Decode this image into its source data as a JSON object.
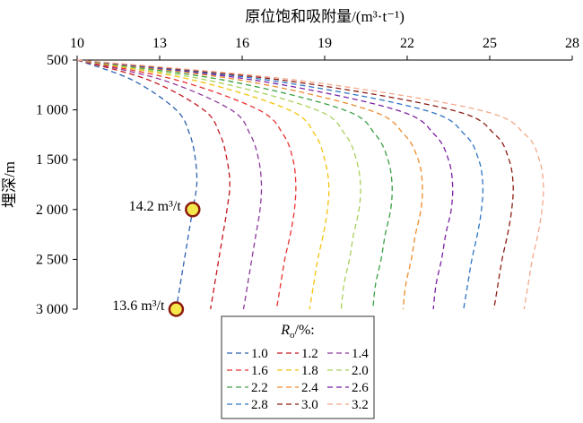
{
  "chart_data": {
    "type": "line",
    "title": "",
    "xlabel": "原位饱和吸附量/(m³·t⁻¹)",
    "ylabel": "埋深/m",
    "x_axis_position": "top",
    "y_axis_inverted": true,
    "xlim": [
      10,
      28
    ],
    "ylim": [
      500,
      3000
    ],
    "xticks": [
      10,
      13,
      16,
      19,
      22,
      25,
      28
    ],
    "xtick_labels": [
      "10",
      "13",
      "16",
      "19",
      "22",
      "25",
      "28"
    ],
    "yticks": [
      500,
      1000,
      1500,
      2000,
      2500,
      3000
    ],
    "ytick_labels": [
      "500",
      "1 000",
      "1 500",
      "2 000",
      "2 500",
      "3 000"
    ],
    "grid": false,
    "line_style": "dashed",
    "legend": {
      "title": "R",
      "title_subscript": "o",
      "title_suffix": "/%:",
      "placement": "bottom-center",
      "columns": 3
    },
    "series": [
      {
        "name": "1.0",
        "color": "#2e62b0",
        "points": [
          [
            10,
            500
          ],
          [
            12.0,
            700
          ],
          [
            13.6,
            1000
          ],
          [
            14.1,
            1250
          ],
          [
            14.3,
            1500
          ],
          [
            14.35,
            1750
          ],
          [
            14.2,
            2000
          ],
          [
            14.05,
            2250
          ],
          [
            13.9,
            2500
          ],
          [
            13.75,
            2750
          ],
          [
            13.6,
            3000
          ]
        ]
      },
      {
        "name": "1.2",
        "color": "#c4161c",
        "points": [
          [
            10,
            500
          ],
          [
            12.6,
            700
          ],
          [
            14.6,
            1000
          ],
          [
            15.2,
            1250
          ],
          [
            15.45,
            1500
          ],
          [
            15.55,
            1750
          ],
          [
            15.45,
            2000
          ],
          [
            15.3,
            2250
          ],
          [
            15.15,
            2500
          ],
          [
            15.0,
            2750
          ],
          [
            14.85,
            3000
          ]
        ]
      },
      {
        "name": "1.4",
        "color": "#8e3a9d",
        "points": [
          [
            10,
            500
          ],
          [
            13.1,
            700
          ],
          [
            15.6,
            1000
          ],
          [
            16.3,
            1250
          ],
          [
            16.6,
            1500
          ],
          [
            16.7,
            1750
          ],
          [
            16.65,
            2000
          ],
          [
            16.5,
            2250
          ],
          [
            16.35,
            2500
          ],
          [
            16.2,
            2750
          ],
          [
            16.05,
            3000
          ]
        ]
      },
      {
        "name": "1.6",
        "color": "#e8312f",
        "points": [
          [
            10,
            500
          ],
          [
            13.6,
            700
          ],
          [
            16.6,
            1000
          ],
          [
            17.5,
            1250
          ],
          [
            17.85,
            1500
          ],
          [
            17.95,
            1750
          ],
          [
            17.9,
            2000
          ],
          [
            17.75,
            2250
          ],
          [
            17.55,
            2500
          ],
          [
            17.4,
            2750
          ],
          [
            17.25,
            3000
          ]
        ]
      },
      {
        "name": "1.8",
        "color": "#f4c20d",
        "points": [
          [
            10,
            500
          ],
          [
            14.2,
            700
          ],
          [
            17.7,
            1000
          ],
          [
            18.65,
            1250
          ],
          [
            19.0,
            1500
          ],
          [
            19.15,
            1750
          ],
          [
            19.1,
            2000
          ],
          [
            18.95,
            2250
          ],
          [
            18.75,
            2500
          ],
          [
            18.6,
            2750
          ],
          [
            18.45,
            3000
          ]
        ]
      },
      {
        "name": "2.0",
        "color": "#a8d05a",
        "points": [
          [
            10,
            500
          ],
          [
            14.7,
            700
          ],
          [
            18.7,
            1000
          ],
          [
            19.75,
            1250
          ],
          [
            20.15,
            1500
          ],
          [
            20.3,
            1750
          ],
          [
            20.25,
            2000
          ],
          [
            20.05,
            2250
          ],
          [
            19.9,
            2500
          ],
          [
            19.7,
            2750
          ],
          [
            19.6,
            3000
          ]
        ]
      },
      {
        "name": "2.2",
        "color": "#3aa043",
        "points": [
          [
            10,
            500
          ],
          [
            15.3,
            700
          ],
          [
            19.7,
            1000
          ],
          [
            20.85,
            1250
          ],
          [
            21.3,
            1500
          ],
          [
            21.45,
            1750
          ],
          [
            21.4,
            2000
          ],
          [
            21.2,
            2250
          ],
          [
            21.05,
            2500
          ],
          [
            20.85,
            2750
          ],
          [
            20.75,
            3000
          ]
        ]
      },
      {
        "name": "2.4",
        "color": "#ec8b2c",
        "points": [
          [
            10,
            500
          ],
          [
            15.9,
            700
          ],
          [
            20.6,
            1000
          ],
          [
            21.9,
            1250
          ],
          [
            22.4,
            1500
          ],
          [
            22.55,
            1750
          ],
          [
            22.5,
            2000
          ],
          [
            22.3,
            2250
          ],
          [
            22.15,
            2500
          ],
          [
            21.95,
            2750
          ],
          [
            21.85,
            3000
          ]
        ]
      },
      {
        "name": "2.6",
        "color": "#7a1fa2",
        "points": [
          [
            10,
            500
          ],
          [
            16.4,
            700
          ],
          [
            21.6,
            1000
          ],
          [
            23.0,
            1250
          ],
          [
            23.5,
            1500
          ],
          [
            23.65,
            1750
          ],
          [
            23.6,
            2000
          ],
          [
            23.4,
            2250
          ],
          [
            23.25,
            2500
          ],
          [
            23.05,
            2750
          ],
          [
            22.95,
            3000
          ]
        ]
      },
      {
        "name": "2.8",
        "color": "#2b73c4",
        "points": [
          [
            10,
            500
          ],
          [
            16.9,
            700
          ],
          [
            22.6,
            1000
          ],
          [
            24.1,
            1250
          ],
          [
            24.6,
            1500
          ],
          [
            24.75,
            1750
          ],
          [
            24.7,
            2000
          ],
          [
            24.55,
            2250
          ],
          [
            24.35,
            2500
          ],
          [
            24.2,
            2750
          ],
          [
            24.05,
            3000
          ]
        ]
      },
      {
        "name": "3.0",
        "color": "#8b1d12",
        "points": [
          [
            10,
            500
          ],
          [
            17.4,
            700
          ],
          [
            23.6,
            1000
          ],
          [
            25.2,
            1250
          ],
          [
            25.7,
            1500
          ],
          [
            25.85,
            1750
          ],
          [
            25.8,
            2000
          ],
          [
            25.65,
            2250
          ],
          [
            25.45,
            2500
          ],
          [
            25.3,
            2750
          ],
          [
            25.15,
            3000
          ]
        ]
      },
      {
        "name": "3.2",
        "color": "#f4a88a",
        "points": [
          [
            10,
            500
          ],
          [
            17.9,
            700
          ],
          [
            24.6,
            1000
          ],
          [
            26.3,
            1250
          ],
          [
            26.8,
            1500
          ],
          [
            26.95,
            1750
          ],
          [
            26.9,
            2000
          ],
          [
            26.75,
            2250
          ],
          [
            26.55,
            2500
          ],
          [
            26.4,
            2750
          ],
          [
            26.25,
            3000
          ]
        ]
      }
    ],
    "markers": [
      {
        "x": 14.2,
        "y": 2000,
        "label": "14.2 m³/t",
        "fill": "#f5e84a",
        "stroke": "#8b1a10"
      },
      {
        "x": 13.6,
        "y": 3000,
        "label": "13.6 m³/t",
        "fill": "#f5e84a",
        "stroke": "#8b1a10"
      }
    ]
  }
}
